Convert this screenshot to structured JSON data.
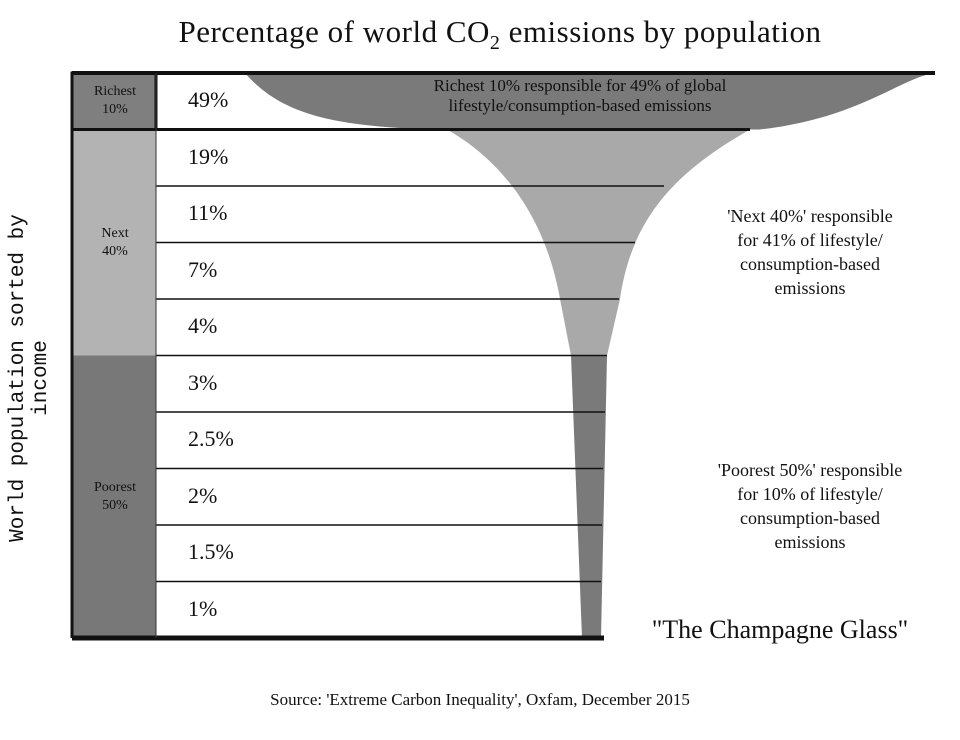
{
  "chart_data": {
    "type": "bar",
    "title": "Percentage of world CO2 emissions by population",
    "title_parts": {
      "pre": "Percentage of world CO",
      "sub": "2",
      "post": " emissions by population"
    },
    "ylabel": "World population sorted by income",
    "categories": [
      "Richest 10%",
      "Next 40% (1)",
      "Next 40% (2)",
      "Next 40% (3)",
      "Next 40% (4)",
      "Poorest 50% (1)",
      "Poorest 50% (2)",
      "Poorest 50% (3)",
      "Poorest 50% (4)",
      "Poorest 50% (5)"
    ],
    "values": [
      49,
      19,
      11,
      7,
      4,
      3,
      2.5,
      2,
      1.5,
      1
    ],
    "value_labels": [
      "49%",
      "19%",
      "11%",
      "7%",
      "4%",
      "3%",
      "2.5%",
      "2%",
      "1.5%",
      "1%"
    ],
    "groups": [
      {
        "label_line1": "Richest",
        "label_line2": "10%",
        "rows": 1,
        "color": "#7f7f7f"
      },
      {
        "label_line1": "Next",
        "label_line2": "40%",
        "rows": 4,
        "color": "#b3b3b3"
      },
      {
        "label_line1": "Poorest",
        "label_line2": "50%",
        "rows": 5,
        "color": "#787878"
      }
    ],
    "annotations": {
      "richest": [
        "Richest 10% responsible for 49% of global",
        "lifestyle/consumption-based emissions"
      ],
      "next": [
        "'Next 40%' responsible",
        "for 41% of lifestyle/",
        "consumption-based",
        "emissions"
      ],
      "poorest": [
        "'Poorest 50%' responsible",
        "for 10% of lifestyle/",
        "consumption-based",
        "emissions"
      ],
      "glass": "\"The Champagne Glass\""
    },
    "colors": {
      "dark": "#7a7a7a",
      "light": "#a9a9a9"
    },
    "source": "Source: 'Extreme Carbon Inequality', Oxfam, December 2015"
  }
}
